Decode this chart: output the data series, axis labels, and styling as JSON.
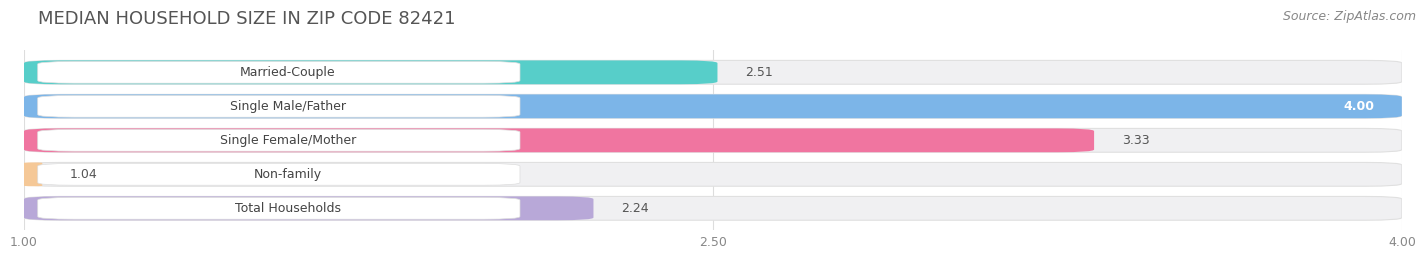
{
  "title": "MEDIAN HOUSEHOLD SIZE IN ZIP CODE 82421",
  "source": "Source: ZipAtlas.com",
  "categories": [
    "Married-Couple",
    "Single Male/Father",
    "Single Female/Mother",
    "Non-family",
    "Total Households"
  ],
  "values": [
    2.51,
    4.0,
    3.33,
    1.04,
    2.24
  ],
  "bar_colors": [
    "#57cec9",
    "#7cb5e8",
    "#f075a0",
    "#f5c897",
    "#b8a8d8"
  ],
  "xlim_min": 1.0,
  "xlim_max": 4.0,
  "xticks": [
    1.0,
    2.5,
    4.0
  ],
  "xticklabels": [
    "1.00",
    "2.50",
    "4.00"
  ],
  "background_color": "#ffffff",
  "bar_bg_color": "#f0f0f2",
  "bar_bg_edge_color": "#e0e0e0",
  "title_fontsize": 13,
  "source_fontsize": 9,
  "label_fontsize": 9,
  "value_fontsize": 9,
  "bar_height": 0.7,
  "value_inside_threshold": 3.6
}
